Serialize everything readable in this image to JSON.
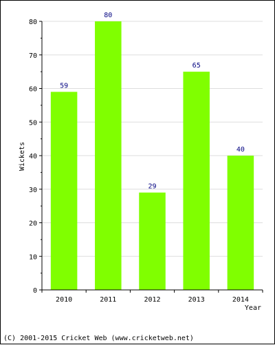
{
  "chart_data": {
    "type": "bar",
    "categories": [
      "2010",
      "2011",
      "2012",
      "2013",
      "2014"
    ],
    "values": [
      59,
      80,
      29,
      65,
      40
    ],
    "title": "",
    "xlabel": "Year",
    "ylabel": "Wickets",
    "ylim": [
      0,
      80
    ],
    "yticks": [
      0,
      10,
      20,
      30,
      40,
      50,
      60,
      70,
      80
    ],
    "grid": true,
    "data_labels": true,
    "colors": {
      "bar": "#80ff00",
      "data_label": "#000080",
      "grid": "#dddddd",
      "axis": "#000000"
    }
  },
  "footer": {
    "text": "(C) 2001-2015 Cricket Web (www.cricketweb.net)"
  }
}
